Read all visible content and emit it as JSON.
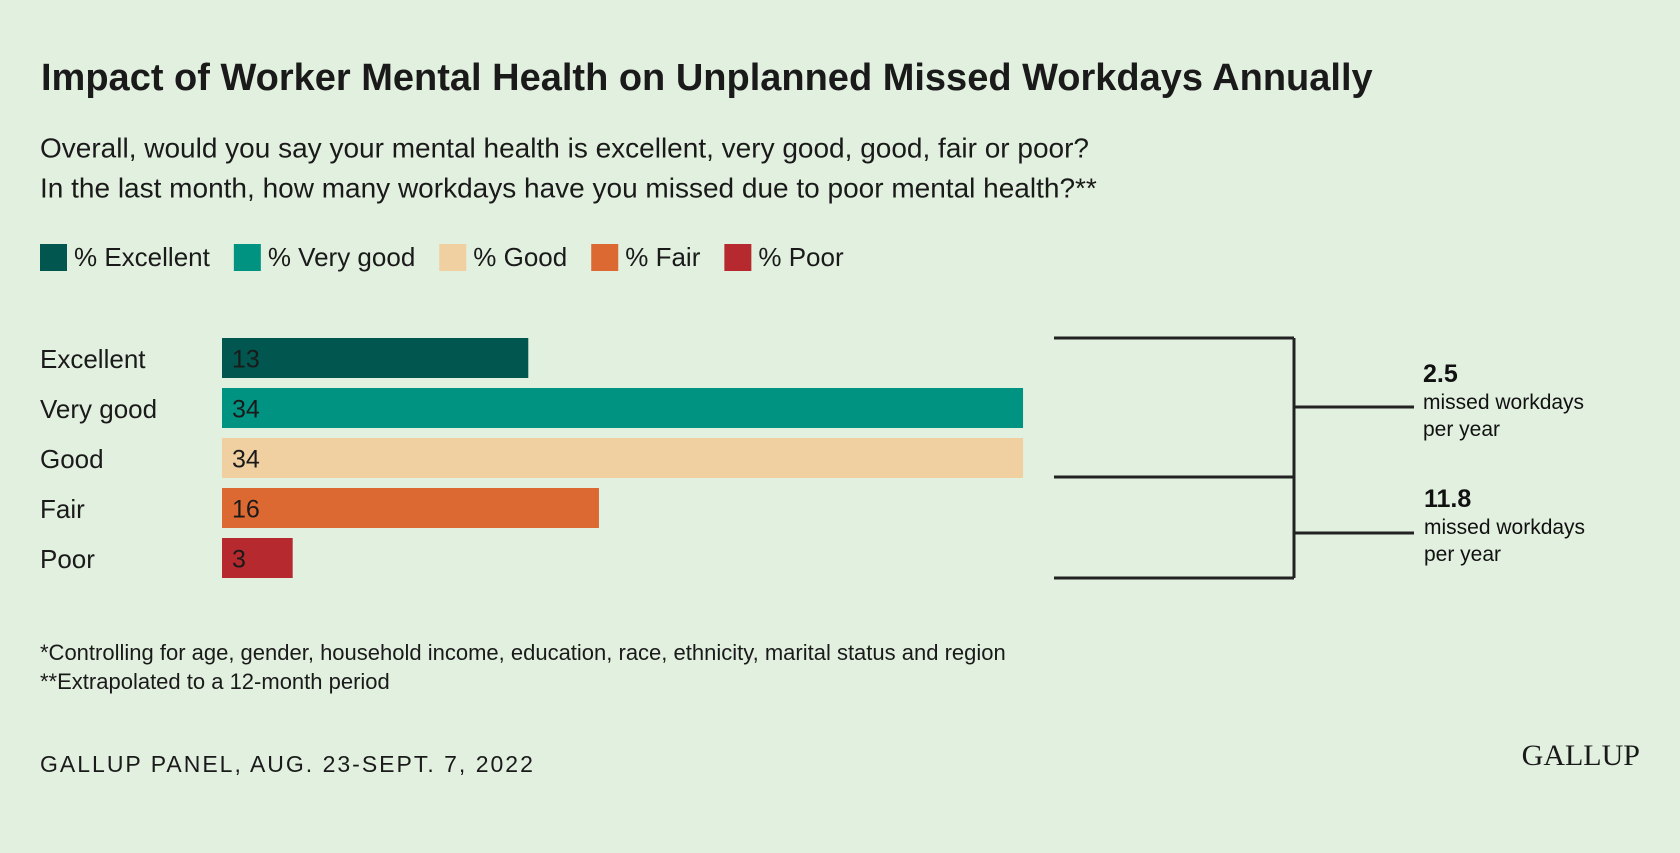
{
  "chart_data": {
    "type": "bar",
    "title": "Impact of Worker Mental Health on Unplanned Missed Workdays Annually",
    "subtitle": [
      "Overall, would you say your mental health is excellent, very good, good, fair or poor?",
      "In the last month, how many workdays have you missed due to poor mental health?**"
    ],
    "legend": [
      "% Excellent",
      "% Very good",
      "% Good",
      "% Fair",
      "% Poor"
    ],
    "categories": [
      "Excellent",
      "Very good",
      "Good",
      "Fair",
      "Poor"
    ],
    "values": [
      13,
      34,
      34,
      16,
      3
    ],
    "colors": [
      "#01574f",
      "#009382",
      "#f0cfa0",
      "#dc6932",
      "#b5292f"
    ],
    "annotations": [
      {
        "value": 2.5,
        "label": "missed workdays per year"
      },
      {
        "value": 11.8,
        "label": "missed workdays per year"
      }
    ],
    "footnotes": [
      "*Controlling for age, gender, household income, education, race, ethnicity, marital status and region",
      "**Extrapolated to a 12-month period"
    ],
    "source": "GALLUP PANEL, AUG. 23-SEPT. 7, 2022",
    "logo": "GALLUP"
  }
}
